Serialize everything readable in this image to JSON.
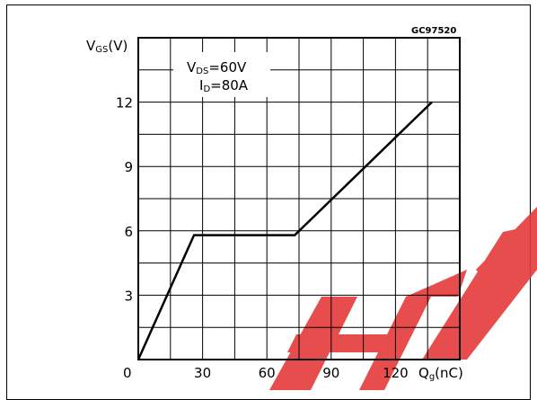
{
  "chart_data": {
    "type": "line",
    "code": "GC97520",
    "ylabel_main": "V",
    "ylabel_sub": "GS",
    "ylabel_unit": "(V)",
    "xlabel_main": "Q",
    "xlabel_sub": "g",
    "xlabel_unit": "(nC)",
    "annotation": {
      "line1_main": "V",
      "line1_sub": "DS",
      "line1_value": "=60V",
      "line2_main": "I",
      "line2_sub": "D",
      "line2_value": "=80A"
    },
    "origin_label": "0",
    "xlim": [
      0,
      150
    ],
    "ylim": [
      0,
      15
    ],
    "x_ticks": [
      30,
      60,
      90,
      120
    ],
    "y_ticks": [
      3,
      6,
      9,
      12
    ],
    "grid": true,
    "series": [
      {
        "x": [
          0,
          26,
          73,
          137
        ],
        "y": [
          0,
          5.8,
          5.8,
          12
        ]
      }
    ]
  }
}
